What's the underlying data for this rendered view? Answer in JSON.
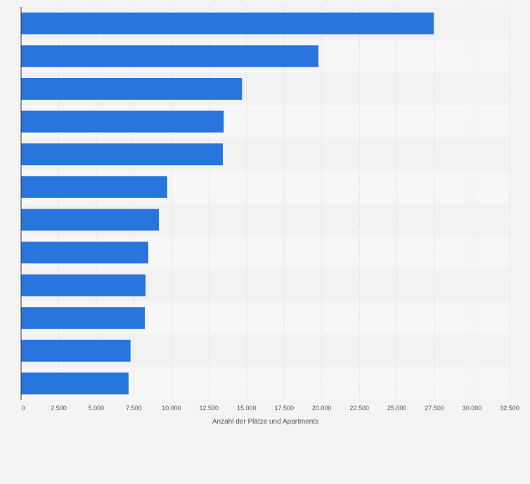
{
  "chart_data": {
    "type": "bar",
    "orientation": "horizontal",
    "categories": [
      "",
      "",
      "",
      "",
      "",
      "",
      "",
      "",
      "",
      "",
      "",
      ""
    ],
    "values": [
      27450,
      19780,
      14700,
      13480,
      13420,
      9720,
      9170,
      8460,
      8280,
      8230,
      7280,
      7150
    ],
    "xlabel": "Anzahl der Plätze und Apartments",
    "ylabel": "",
    "xlim": [
      0,
      32500
    ],
    "xticks": [
      0,
      2500,
      5000,
      7500,
      10000,
      12500,
      15000,
      17500,
      20000,
      22500,
      25000,
      27500,
      30000,
      32500
    ],
    "xtick_labels": [
      "0",
      "2.500",
      "5.000",
      "7.500",
      "10.000",
      "12.500",
      "15.000",
      "17.500",
      "20.000",
      "22.500",
      "25.000",
      "27.500",
      "30.000",
      "32.500"
    ],
    "grid": true,
    "colors": {
      "bar": "#2876dd",
      "row_band_a": "#f2f2f2",
      "row_band_b": "#f7f7f7",
      "page_background": "#f4f4f4",
      "gridline": "#d9d9d9",
      "tick_text": "#555555",
      "axis_line": "#333333"
    }
  }
}
